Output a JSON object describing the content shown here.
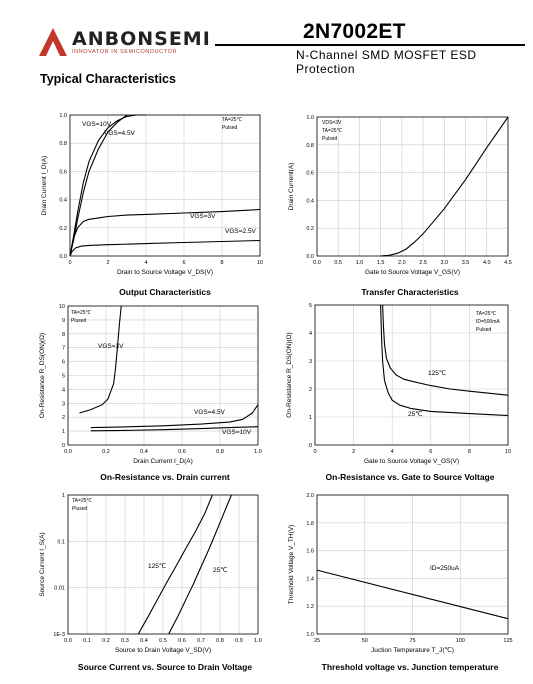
{
  "header": {
    "logo_text": "ANBONSEMI",
    "logo_subtext": "INNOVATOR IN SEMICONDUCTOR",
    "part_number": "2N7002ET",
    "subtitle": "N-Channel SMD MOSFET ESD Protection",
    "section_title": "Typical Characteristics"
  },
  "colors": {
    "logo_red": "#c0392b",
    "curve": "#000000",
    "grid": "#cccccc"
  },
  "chart_data": [
    {
      "id": "output",
      "type": "line",
      "title": "Output Characteristics",
      "xlabel": "Drain to Source Voltage V_DS(V)",
      "ylabel": "Drain Current I_D(A)",
      "xlim": [
        0,
        10
      ],
      "ylim": [
        0,
        1.0
      ],
      "xticks": [
        "0",
        "2",
        "4",
        "6",
        "8",
        "10"
      ],
      "yticks": [
        "0.0",
        "0.2",
        "0.4",
        "0.6",
        "0.8",
        "1.0"
      ],
      "notes": [
        "TA=25℃",
        "Pulsed"
      ],
      "series": [
        {
          "name": "VGS=10V",
          "label": "VGS=10V",
          "x": [
            0,
            0.2,
            0.4,
            0.7,
            1.0,
            1.5,
            2.0,
            2.5,
            3.0,
            3.5,
            4.0
          ],
          "y": [
            0,
            0.15,
            0.31,
            0.52,
            0.67,
            0.82,
            0.91,
            0.96,
            0.99,
            1.0,
            1.0
          ]
        },
        {
          "name": "VGS=4.5V",
          "label": "VGS=4.5V",
          "x": [
            0,
            0.2,
            0.4,
            0.7,
            1.0,
            1.5,
            2.0,
            2.5,
            3.0
          ],
          "y": [
            0,
            0.12,
            0.26,
            0.45,
            0.6,
            0.76,
            0.88,
            0.95,
            1.0
          ]
        },
        {
          "name": "VGS=3V",
          "label": "VGS=3V",
          "x": [
            0,
            0.1,
            0.2,
            0.4,
            0.7,
            1.0,
            1.5,
            2,
            3,
            4,
            6,
            8,
            10
          ],
          "y": [
            0,
            0.07,
            0.13,
            0.2,
            0.245,
            0.26,
            0.27,
            0.28,
            0.29,
            0.295,
            0.305,
            0.315,
            0.33
          ]
        },
        {
          "name": "VGS=2.5V",
          "label": "VGS=2.5V",
          "x": [
            0,
            0.1,
            0.3,
            0.6,
            1.0,
            2,
            4,
            6,
            8,
            10
          ],
          "y": [
            0,
            0.03,
            0.058,
            0.07,
            0.075,
            0.08,
            0.088,
            0.096,
            0.103,
            0.11
          ]
        }
      ]
    },
    {
      "id": "transfer",
      "type": "line",
      "title": "Transfer Characteristics",
      "xlabel": "Gate to Source Voltage V_GS(V)",
      "ylabel": "Drain Current(A)",
      "xlim": [
        0,
        4.5
      ],
      "ylim": [
        0,
        1.0
      ],
      "xticks": [
        "0.0",
        "0.5",
        "1.0",
        "1.5",
        "2.0",
        "2.5",
        "3.0",
        "3.5",
        "4.0",
        "4.5"
      ],
      "yticks": [
        "0.0",
        "0.2",
        "0.4",
        "0.6",
        "0.8",
        "1.0"
      ],
      "notes": [
        "VDS=3V",
        "TA=25℃",
        "Pulsed"
      ],
      "series": [
        {
          "name": "ID",
          "x": [
            1.5,
            1.7,
            1.9,
            2.1,
            2.3,
            2.5,
            2.75,
            3.0,
            3.5,
            4.0,
            4.5
          ],
          "y": [
            0,
            0.005,
            0.02,
            0.05,
            0.1,
            0.16,
            0.25,
            0.34,
            0.55,
            0.78,
            1.0
          ]
        }
      ]
    },
    {
      "id": "ron_id",
      "type": "line",
      "title": "On-Resistance vs. Drain current",
      "xlabel": "Drain Current I_D(A)",
      "ylabel": "On-Resistance R_DS(ON)(Ω)",
      "xlim": [
        0,
        1.0
      ],
      "ylim": [
        0,
        10
      ],
      "xticks": [
        "0.0",
        "0.2",
        "0.4",
        "0.6",
        "0.8",
        "1.0"
      ],
      "yticks": [
        "0",
        "1",
        "2",
        "3",
        "4",
        "5",
        "6",
        "7",
        "8",
        "9",
        "10"
      ],
      "notes": [
        "TA=25℃",
        "Plused"
      ],
      "series": [
        {
          "name": "VGS=3V",
          "label": "VGS=3V",
          "x": [
            0.06,
            0.12,
            0.18,
            0.21,
            0.24,
            0.25,
            0.26,
            0.27,
            0.28
          ],
          "y": [
            2.3,
            2.55,
            2.9,
            3.3,
            4.4,
            5.5,
            7,
            8.6,
            10
          ]
        },
        {
          "name": "VGS=4.5V",
          "label": "VGS=4.5V",
          "x": [
            0.12,
            0.3,
            0.5,
            0.7,
            0.85,
            0.92,
            0.97,
            1.0
          ],
          "y": [
            1.25,
            1.3,
            1.38,
            1.5,
            1.65,
            1.85,
            2.3,
            2.9
          ]
        },
        {
          "name": "VGS=10V",
          "label": "VGS=10V",
          "x": [
            0.12,
            0.3,
            0.5,
            0.7,
            0.85,
            1.0
          ],
          "y": [
            1.02,
            1.05,
            1.1,
            1.18,
            1.25,
            1.32
          ]
        }
      ]
    },
    {
      "id": "ron_vgs",
      "type": "line",
      "title": "On-Resistance vs. Gate to Source Voltage",
      "xlabel": "Gate to Source Voltage V_GS(V)",
      "ylabel": "On-Resistance R_DS(ON)(Ω)",
      "xlim": [
        0,
        10
      ],
      "ylim": [
        0,
        5
      ],
      "xticks": [
        "0",
        "2",
        "4",
        "6",
        "8",
        "10"
      ],
      "yticks": [
        "0",
        "1",
        "2",
        "3",
        "4",
        "5"
      ],
      "notes": [
        "TA=25℃",
        "ID=500mA",
        "Pulsed"
      ],
      "series": [
        {
          "name": "125℃",
          "label": "125℃",
          "x": [
            3.5,
            3.55,
            3.6,
            3.7,
            3.9,
            4.2,
            4.6,
            5,
            6,
            7,
            8,
            10
          ],
          "y": [
            5,
            4.2,
            3.6,
            3.1,
            2.75,
            2.5,
            2.35,
            2.28,
            2.12,
            2.0,
            1.92,
            1.78
          ]
        },
        {
          "name": "25℃",
          "label": "25℃",
          "x": [
            3.4,
            3.45,
            3.5,
            3.6,
            3.8,
            4.0,
            4.4,
            5,
            6,
            8,
            10
          ],
          "y": [
            5,
            3.8,
            3.0,
            2.3,
            1.85,
            1.6,
            1.42,
            1.3,
            1.2,
            1.12,
            1.05
          ]
        }
      ]
    },
    {
      "id": "source_current",
      "type": "line",
      "title": "Source Current vs. Source to Drain Voltage",
      "xlabel": "Source to Drain Voltage V_SD(V)",
      "ylabel": "Source Current I_S(A)",
      "xlim": [
        0,
        1.0
      ],
      "ylim": [
        0.001,
        1
      ],
      "yscale": "log",
      "xticks": [
        "0.0",
        "0.1",
        "0.2",
        "0.3",
        "0.4",
        "0.5",
        "0.6",
        "0.7",
        "0.8",
        "0.9",
        "1.0"
      ],
      "yticks": [
        "1E-3",
        "0.01",
        "0.1",
        "1"
      ],
      "notes": [
        "TA=25℃",
        "Plused"
      ],
      "series": [
        {
          "name": "125℃",
          "label": "125℃",
          "x": [
            0.37,
            0.42,
            0.47,
            0.52,
            0.57,
            0.62,
            0.67,
            0.72,
            0.76
          ],
          "y": [
            0.001,
            0.0023,
            0.0055,
            0.013,
            0.03,
            0.07,
            0.16,
            0.4,
            1.0
          ]
        },
        {
          "name": "25℃",
          "label": "25℃",
          "x": [
            0.53,
            0.58,
            0.62,
            0.66,
            0.7,
            0.74,
            0.78,
            0.82,
            0.86
          ],
          "y": [
            0.001,
            0.0025,
            0.0055,
            0.012,
            0.028,
            0.065,
            0.16,
            0.4,
            1.0
          ]
        }
      ]
    },
    {
      "id": "threshold",
      "type": "line",
      "title": "Threshold voltage vs. Junction temperature",
      "xlabel": "Juction Temperature T_J(℃)",
      "ylabel": "Threshold Voltage V_TH(V)",
      "xlim": [
        25,
        125
      ],
      "ylim": [
        1.0,
        2.0
      ],
      "xticks": [
        "25",
        "50",
        "75",
        "100",
        "125"
      ],
      "yticks": [
        "1.0",
        "1.2",
        "1.4",
        "1.6",
        "1.8",
        "2.0"
      ],
      "notes": [
        "ID=250uA"
      ],
      "series": [
        {
          "name": "VTH",
          "x": [
            25,
            125
          ],
          "y": [
            1.46,
            1.11
          ]
        }
      ]
    }
  ]
}
